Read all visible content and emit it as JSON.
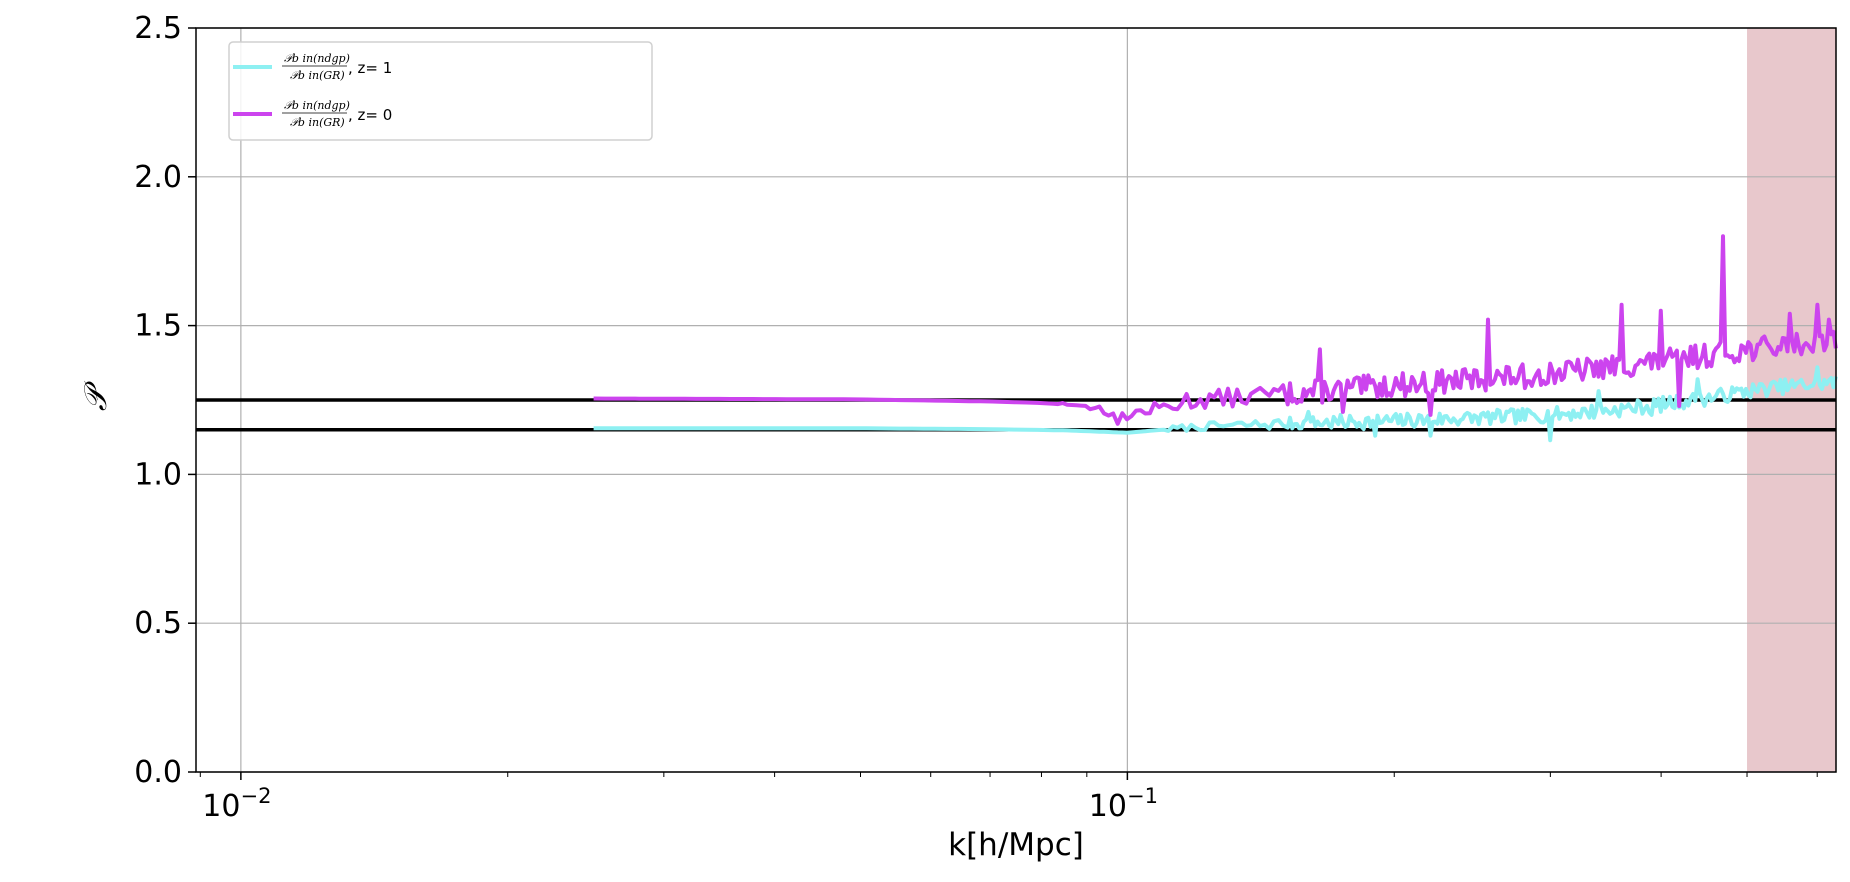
{
  "chart_data": {
    "type": "line",
    "xlabel": "k[h/Mpc]",
    "ylabel": "𝒫",
    "xscale": "log",
    "xlim": [
      0.0089,
      0.63
    ],
    "ylim": [
      0,
      2.5
    ],
    "x_ticks": [
      {
        "value": 0.01,
        "base": "10",
        "exp": "−2"
      },
      {
        "value": 0.1,
        "base": "10",
        "exp": "−1"
      }
    ],
    "y_ticks": [
      {
        "value": 0.0,
        "label": "0.0"
      },
      {
        "value": 0.5,
        "label": "0.5"
      },
      {
        "value": 1.0,
        "label": "1.0"
      },
      {
        "value": 1.5,
        "label": "1.5"
      },
      {
        "value": 2.0,
        "label": "2.0"
      },
      {
        "value": 2.5,
        "label": "2.5"
      }
    ],
    "grid": true,
    "legend_position": "top-left",
    "shaded_region": {
      "x_from": 0.5,
      "x_to": 0.63,
      "color": "#e8c8cc"
    },
    "hlines": [
      {
        "y": 1.25,
        "color": "#000000"
      },
      {
        "y": 1.15,
        "color": "#000000"
      }
    ],
    "series": [
      {
        "name": "z= 1",
        "legend_num": "𝒫b in(ndgp)",
        "legend_den": "𝒫b in(GR)",
        "color": "#8ef0f2",
        "base": [
          [
            0.025,
            1.155
          ],
          [
            0.05,
            1.155
          ],
          [
            0.07,
            1.152
          ],
          [
            0.085,
            1.148
          ],
          [
            0.1,
            1.14
          ],
          [
            0.12,
            1.16
          ],
          [
            0.15,
            1.17
          ],
          [
            0.2,
            1.18
          ],
          [
            0.25,
            1.19
          ],
          [
            0.3,
            1.2
          ],
          [
            0.35,
            1.215
          ],
          [
            0.4,
            1.235
          ],
          [
            0.45,
            1.255
          ],
          [
            0.5,
            1.28
          ],
          [
            0.55,
            1.295
          ],
          [
            0.63,
            1.31
          ]
        ],
        "noise": 0.025,
        "noise_start": 0.11,
        "seed": 7,
        "spikes": [
          [
            0.16,
            1.21
          ],
          [
            0.19,
            1.13
          ],
          [
            0.22,
            1.13
          ],
          [
            0.3,
            1.115
          ],
          [
            0.34,
            1.28
          ],
          [
            0.39,
            1.2
          ],
          [
            0.44,
            1.32
          ],
          [
            0.6,
            1.36
          ]
        ]
      },
      {
        "name": "z= 0",
        "legend_num": "𝒫b in(ndgp)",
        "legend_den": "𝒫b in(GR)",
        "color": "#cc44ee",
        "base": [
          [
            0.025,
            1.255
          ],
          [
            0.05,
            1.252
          ],
          [
            0.07,
            1.245
          ],
          [
            0.08,
            1.24
          ],
          [
            0.09,
            1.23
          ],
          [
            0.1,
            1.2
          ],
          [
            0.12,
            1.25
          ],
          [
            0.15,
            1.27
          ],
          [
            0.2,
            1.3
          ],
          [
            0.25,
            1.32
          ],
          [
            0.3,
            1.34
          ],
          [
            0.35,
            1.36
          ],
          [
            0.4,
            1.38
          ],
          [
            0.45,
            1.4
          ],
          [
            0.5,
            1.42
          ],
          [
            0.55,
            1.43
          ],
          [
            0.63,
            1.45
          ]
        ],
        "noise": 0.04,
        "noise_start": 0.09,
        "seed": 13,
        "spikes": [
          [
            0.085,
            1.24
          ],
          [
            0.098,
            1.17
          ],
          [
            0.117,
            1.27
          ],
          [
            0.165,
            1.42
          ],
          [
            0.175,
            1.21
          ],
          [
            0.22,
            1.2
          ],
          [
            0.255,
            1.52
          ],
          [
            0.28,
            1.29
          ],
          [
            0.36,
            1.57
          ],
          [
            0.4,
            1.55
          ],
          [
            0.42,
            1.23
          ],
          [
            0.47,
            1.8
          ],
          [
            0.56,
            1.54
          ],
          [
            0.6,
            1.57
          ],
          [
            0.62,
            1.52
          ]
        ]
      }
    ]
  }
}
